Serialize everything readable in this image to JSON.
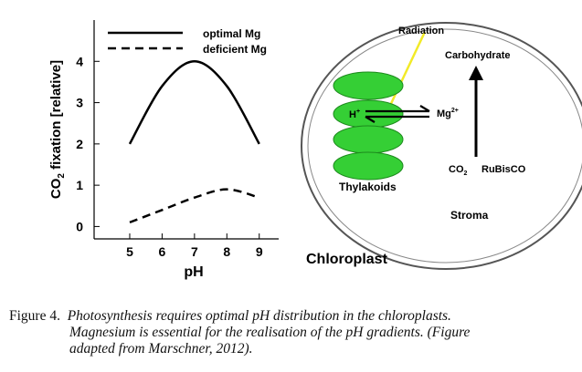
{
  "chart_data": {
    "type": "line",
    "ylabel_parts": [
      "CO",
      "2",
      " fixation [relative]"
    ],
    "xlabel": "pH",
    "x": [
      5,
      6,
      7,
      8,
      9
    ],
    "series": [
      {
        "name": "optimal Mg",
        "color": "#000000",
        "style": "solid",
        "values": [
          2,
          3.4,
          4,
          3.4,
          2
        ]
      },
      {
        "name": "deficient Mg",
        "color": "#000000",
        "style": "dashed",
        "values": [
          0.1,
          0.4,
          0.7,
          0.9,
          0.7
        ]
      }
    ],
    "xlim": [
      3.9,
      9.6
    ],
    "ylim": [
      -0.3,
      5
    ],
    "xticks": [
      5,
      6,
      7,
      8,
      9
    ],
    "yticks": [
      0,
      1,
      2,
      3,
      4
    ]
  },
  "diagram": {
    "radiation": "Radiation",
    "carbohydrate": "Carbohydrate",
    "proton": {
      "base": "H",
      "sup": "+"
    },
    "magnesium": {
      "base": "Mg",
      "sup": "2+"
    },
    "thylakoids": "Thylakoids",
    "co2": {
      "base": "CO",
      "sub": "2"
    },
    "rubisco": "RuBisCO",
    "stroma": "Stroma",
    "chloroplast": "Chloroplast"
  },
  "caption": {
    "label": "Figure 4.",
    "lines": [
      "Photosynthesis requires optimal pH distribution in the chloroplasts.",
      "Magnesium is essential for the realisation of the pH gradients. (Figure",
      "adapted from Marschner, 2012)."
    ]
  }
}
